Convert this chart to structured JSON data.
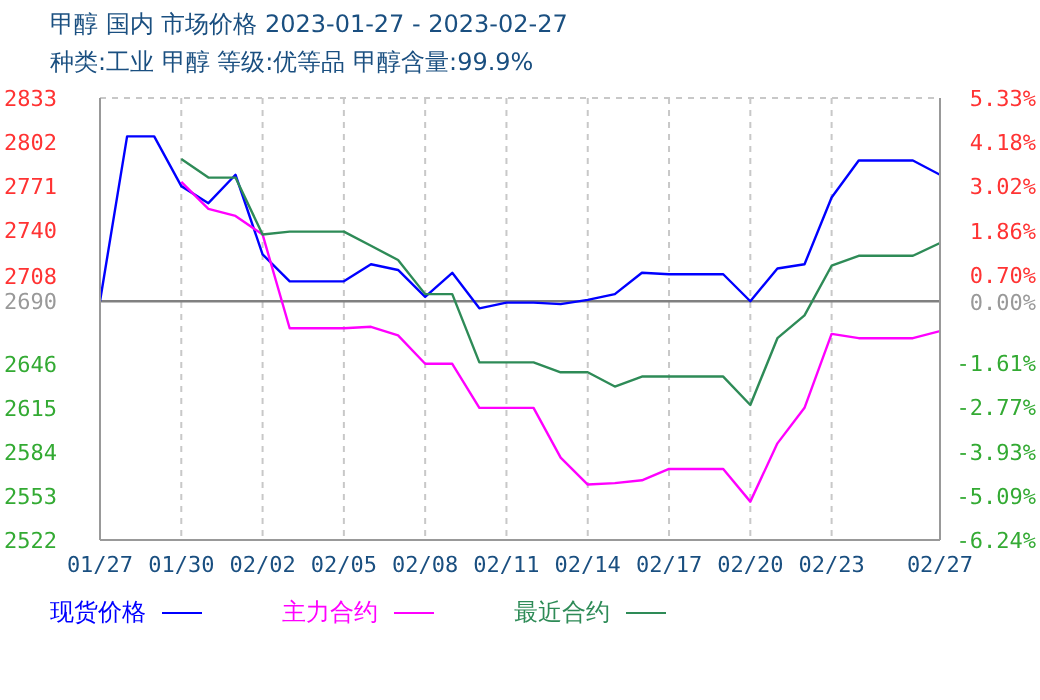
{
  "chart_data": {
    "type": "line",
    "title": "甲醇 国内 市场价格 2023-01-27 - 2023-02-27",
    "subtitle": "种类:工业 甲醇 等级:优等品 甲醇含量:99.9%",
    "x": [
      "2023-01-27",
      "2023-01-28",
      "2023-01-29",
      "2023-01-30",
      "2023-01-31",
      "2023-02-01",
      "2023-02-02",
      "2023-02-03",
      "2023-02-04",
      "2023-02-05",
      "2023-02-06",
      "2023-02-07",
      "2023-02-08",
      "2023-02-09",
      "2023-02-10",
      "2023-02-11",
      "2023-02-12",
      "2023-02-13",
      "2023-02-14",
      "2023-02-15",
      "2023-02-16",
      "2023-02-17",
      "2023-02-18",
      "2023-02-19",
      "2023-02-20",
      "2023-02-21",
      "2023-02-22",
      "2023-02-23",
      "2023-02-24",
      "2023-02-25",
      "2023-02-26",
      "2023-02-27"
    ],
    "series": [
      {
        "name": "现货价格",
        "color": "#0000ff",
        "values": [
          2690,
          2806,
          2806,
          2771,
          2759,
          2779,
          2723,
          2704,
          2704,
          2704,
          2716,
          2712,
          2693,
          2710,
          2685,
          2689,
          2689,
          2688,
          2691,
          2695,
          2710,
          2709,
          2709,
          2709,
          2690,
          2713,
          2716,
          2763,
          2789,
          2789,
          2789,
          2779
        ]
      },
      {
        "name": "主力合约",
        "color": "#ff00ff",
        "values": [
          null,
          null,
          null,
          2774,
          2755,
          2750,
          2737,
          2671,
          2671,
          2671,
          2672,
          2666,
          2646,
          2646,
          2615,
          2615,
          2615,
          2580,
          2561,
          2562,
          2564,
          2572,
          2572,
          2572,
          2549,
          2590,
          2615,
          2667,
          2664,
          2664,
          2664,
          2669
        ]
      },
      {
        "name": "最近合约",
        "color": "#2e8b57",
        "values": [
          null,
          null,
          null,
          2790,
          2777,
          2777,
          2737,
          2739,
          2739,
          2739,
          2729,
          2719,
          2695,
          2695,
          2647,
          2647,
          2647,
          2640,
          2640,
          2630,
          2637,
          2637,
          2637,
          2637,
          2617,
          2664,
          2680,
          2715,
          2722,
          2722,
          2722,
          2731
        ]
      }
    ],
    "xlim": [
      "2023-01-27",
      "2023-02-27"
    ],
    "xticks": [
      {
        "value": "2023-01-27",
        "label": "01/27"
      },
      {
        "value": "2023-01-30",
        "label": "01/30"
      },
      {
        "value": "2023-02-02",
        "label": "02/02"
      },
      {
        "value": "2023-02-05",
        "label": "02/05"
      },
      {
        "value": "2023-02-08",
        "label": "02/08"
      },
      {
        "value": "2023-02-11",
        "label": "02/11"
      },
      {
        "value": "2023-02-14",
        "label": "02/14"
      },
      {
        "value": "2023-02-17",
        "label": "02/17"
      },
      {
        "value": "2023-02-20",
        "label": "02/20"
      },
      {
        "value": "2023-02-23",
        "label": "02/23"
      },
      {
        "value": "2023-02-27",
        "label": "02/27"
      }
    ],
    "ylim": [
      2522,
      2833
    ],
    "yticks": [
      2522,
      2553,
      2584,
      2615,
      2646,
      2690,
      2708,
      2740,
      2771,
      2802,
      2833
    ],
    "y2lim": [
      -6.24,
      5.33
    ],
    "y2ticks": [
      {
        "value": -6.24,
        "label": "-6.24%"
      },
      {
        "value": -5.09,
        "label": "-5.09%"
      },
      {
        "value": -3.93,
        "label": "-3.93%"
      },
      {
        "value": -2.77,
        "label": "-2.77%"
      },
      {
        "value": -1.61,
        "label": "-1.61%"
      },
      {
        "value": 0,
        "label": "0.00%"
      },
      {
        "value": 0.7,
        "label": "0.70%"
      },
      {
        "value": 1.86,
        "label": "1.86%"
      },
      {
        "value": 3.02,
        "label": "3.02%"
      },
      {
        "value": 4.18,
        "label": "4.18%"
      },
      {
        "value": 5.33,
        "label": "5.33%"
      }
    ],
    "ref_lines": [
      {
        "axis": "y",
        "value": 2690,
        "color": "#808080"
      }
    ],
    "grid": true,
    "legend": "bottom",
    "marker": "none",
    "line_style": "solid"
  }
}
